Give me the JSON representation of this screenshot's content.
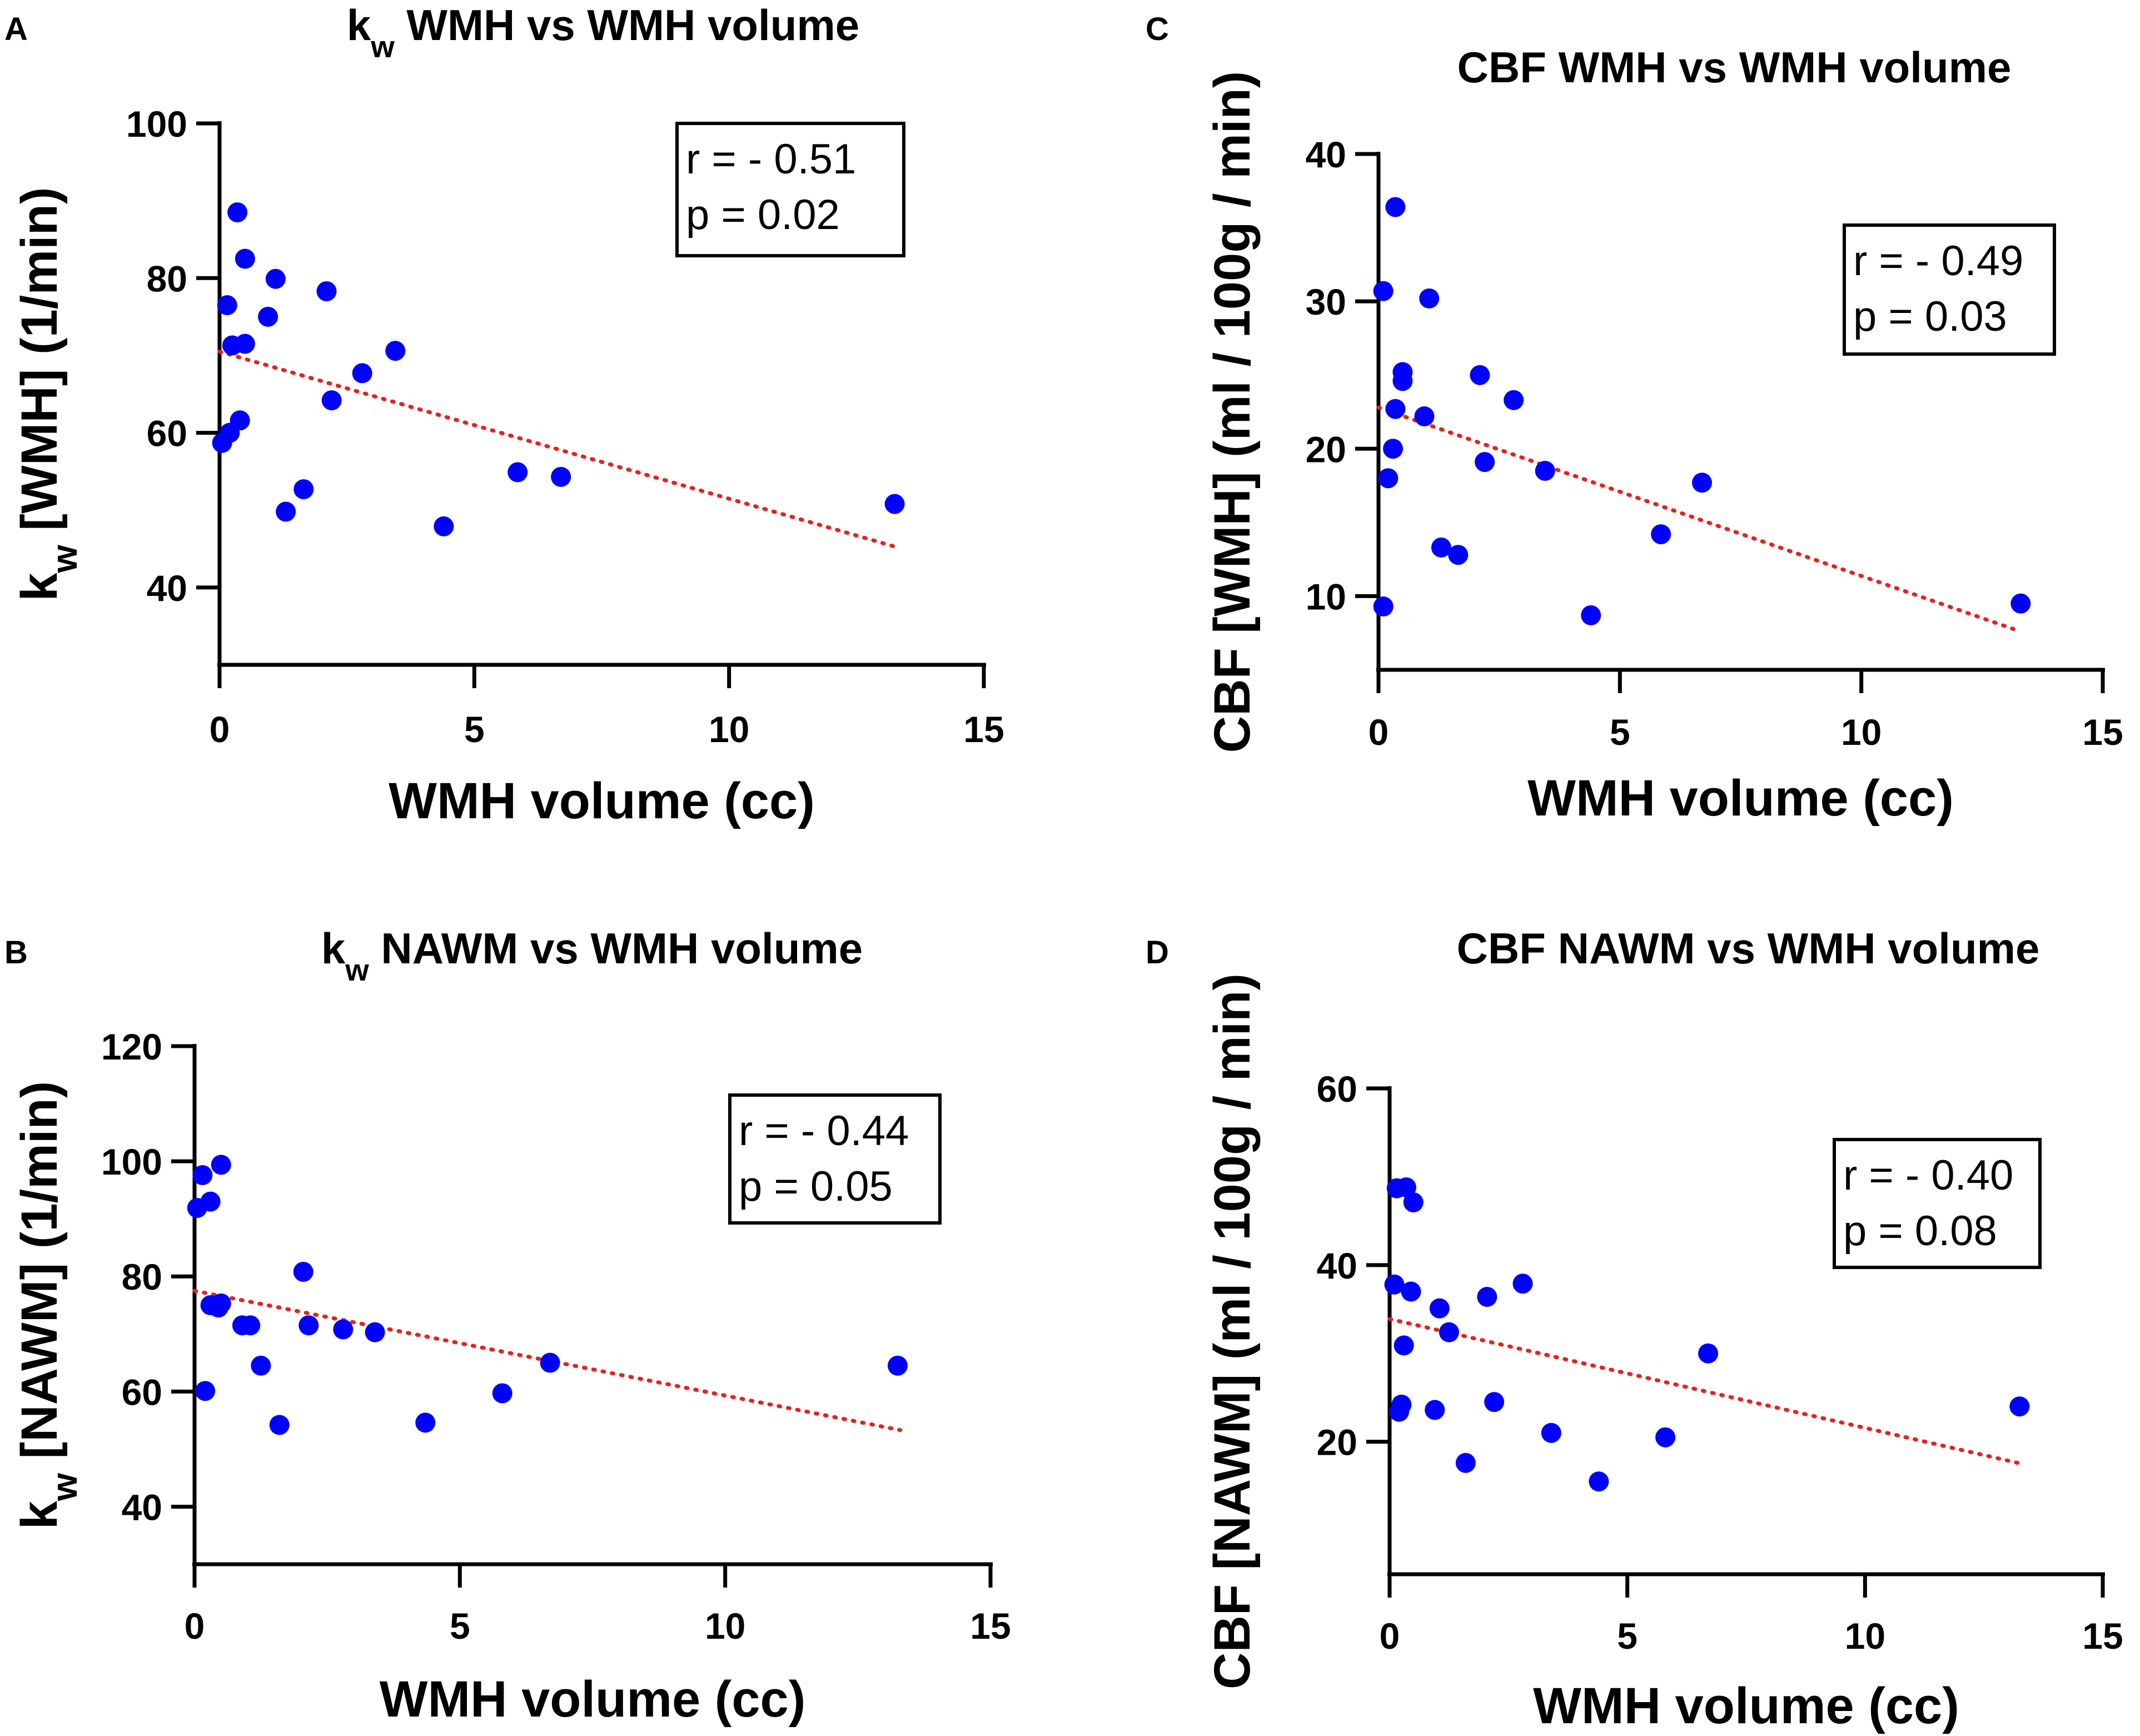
{
  "figure": {
    "colors": {
      "points": "#0000ff",
      "trendline": "#e8211d",
      "axes": "#000000",
      "background": "#ffffff"
    }
  },
  "chart_data": [
    {
      "panel": "A",
      "type": "scatter",
      "title_main": "k",
      "title_sub": "w",
      "title_rest": " WMH vs WMH volume",
      "xlabel": "WMH volume (cc)",
      "ylabel_main": "k",
      "ylabel_sub": "w",
      "ylabel_rest": " [WMH] (1/min)",
      "xlim": [
        0,
        15
      ],
      "ylim": [
        30,
        100
      ],
      "xticks": [
        0,
        5,
        10,
        15
      ],
      "yticks": [
        40,
        60,
        80,
        100
      ],
      "r_text": "r =  - 0.51",
      "p_text": "p =  0.02",
      "stats_position": "top-right",
      "trendline": {
        "x": [
          0,
          13.3
        ],
        "y": [
          70.5,
          45.2
        ],
        "style": "dotted"
      },
      "points": [
        {
          "x": 0.05,
          "y": 58.7
        },
        {
          "x": 0.15,
          "y": 76.5
        },
        {
          "x": 0.2,
          "y": 60.0
        },
        {
          "x": 0.25,
          "y": 71.3
        },
        {
          "x": 0.35,
          "y": 88.5
        },
        {
          "x": 0.4,
          "y": 61.6
        },
        {
          "x": 0.5,
          "y": 71.5
        },
        {
          "x": 0.5,
          "y": 82.5
        },
        {
          "x": 0.95,
          "y": 75.0
        },
        {
          "x": 1.1,
          "y": 79.9
        },
        {
          "x": 1.3,
          "y": 49.8
        },
        {
          "x": 1.65,
          "y": 52.7
        },
        {
          "x": 2.1,
          "y": 78.3
        },
        {
          "x": 2.2,
          "y": 64.2
        },
        {
          "x": 2.8,
          "y": 67.7
        },
        {
          "x": 3.45,
          "y": 70.6
        },
        {
          "x": 4.4,
          "y": 47.9
        },
        {
          "x": 5.85,
          "y": 54.9
        },
        {
          "x": 6.7,
          "y": 54.3
        },
        {
          "x": 13.25,
          "y": 50.8
        }
      ]
    },
    {
      "panel": "B",
      "type": "scatter",
      "title_main": "k",
      "title_sub": "w",
      "title_rest": " NAWM vs WMH volume",
      "xlabel": "WMH volume (cc)",
      "ylabel_main": "k",
      "ylabel_sub": "w",
      "ylabel_rest": " [NAWM] (1/min)",
      "xlim": [
        0,
        15
      ],
      "ylim": [
        30,
        120
      ],
      "xticks": [
        0,
        5,
        10,
        15
      ],
      "yticks": [
        40,
        60,
        80,
        100,
        120
      ],
      "r_text": "r =  - 0.44",
      "p_text": "p =  0.05",
      "stats_position": "right",
      "trendline": {
        "x": [
          0,
          13.3
        ],
        "y": [
          77.5,
          53.3
        ],
        "style": "dotted"
      },
      "points": [
        {
          "x": 0.05,
          "y": 91.9
        },
        {
          "x": 0.15,
          "y": 97.6
        },
        {
          "x": 0.2,
          "y": 60.1
        },
        {
          "x": 0.3,
          "y": 93.0
        },
        {
          "x": 0.3,
          "y": 75.0
        },
        {
          "x": 0.45,
          "y": 74.6
        },
        {
          "x": 0.5,
          "y": 75.3
        },
        {
          "x": 0.5,
          "y": 99.4
        },
        {
          "x": 0.9,
          "y": 71.5
        },
        {
          "x": 1.05,
          "y": 71.5
        },
        {
          "x": 1.25,
          "y": 64.5
        },
        {
          "x": 1.6,
          "y": 54.2
        },
        {
          "x": 2.05,
          "y": 80.8
        },
        {
          "x": 2.15,
          "y": 71.5
        },
        {
          "x": 2.8,
          "y": 70.8
        },
        {
          "x": 3.4,
          "y": 70.3
        },
        {
          "x": 4.35,
          "y": 54.6
        },
        {
          "x": 5.8,
          "y": 59.7
        },
        {
          "x": 6.7,
          "y": 65.0
        },
        {
          "x": 13.25,
          "y": 64.5
        }
      ]
    },
    {
      "panel": "C",
      "type": "scatter",
      "title_main": "CBF WMH vs WMH volume",
      "xlabel": "WMH volume (cc)",
      "ylabel": "CBF [WMH] (ml / 100g / min)",
      "xlim": [
        0,
        15
      ],
      "ylim": [
        5,
        40
      ],
      "xticks": [
        0,
        5,
        10,
        15
      ],
      "yticks": [
        10,
        20,
        30,
        40
      ],
      "r_text": "r =  - 0.49",
      "p_text": "p =  0.03",
      "stats_position": "top-right",
      "trendline": {
        "x": [
          0,
          13.3
        ],
        "y": [
          22.8,
          7.6
        ],
        "style": "dotted"
      },
      "points": [
        {
          "x": 0.1,
          "y": 30.7
        },
        {
          "x": 0.1,
          "y": 9.3
        },
        {
          "x": 0.2,
          "y": 18.0
        },
        {
          "x": 0.3,
          "y": 20.0
        },
        {
          "x": 0.35,
          "y": 22.7
        },
        {
          "x": 0.35,
          "y": 36.4
        },
        {
          "x": 0.5,
          "y": 25.2
        },
        {
          "x": 0.5,
          "y": 24.6
        },
        {
          "x": 0.95,
          "y": 22.2
        },
        {
          "x": 1.05,
          "y": 30.2
        },
        {
          "x": 1.3,
          "y": 13.3
        },
        {
          "x": 1.65,
          "y": 12.8
        },
        {
          "x": 2.1,
          "y": 25.0
        },
        {
          "x": 2.2,
          "y": 19.1
        },
        {
          "x": 2.8,
          "y": 23.3
        },
        {
          "x": 3.45,
          "y": 18.5
        },
        {
          "x": 4.4,
          "y": 8.7
        },
        {
          "x": 5.85,
          "y": 14.2
        },
        {
          "x": 6.7,
          "y": 17.7
        },
        {
          "x": 13.3,
          "y": 9.5
        }
      ]
    },
    {
      "panel": "D",
      "type": "scatter",
      "title_main": "CBF NAWM vs WMH volume",
      "xlabel": "WMH volume (cc)",
      "ylabel": "CBF [NAWM] (ml / 100g / min)",
      "xlim": [
        0,
        15
      ],
      "ylim": [
        5,
        60
      ],
      "xticks": [
        0,
        5,
        10,
        15
      ],
      "yticks": [
        20,
        40,
        60
      ],
      "r_text": "r =  - 0.40",
      "p_text": "p =  0.08",
      "stats_position": "right",
      "trendline": {
        "x": [
          0,
          13.3
        ],
        "y": [
          33.9,
          17.5
        ],
        "style": "dotted"
      },
      "points": [
        {
          "x": 0.1,
          "y": 37.8
        },
        {
          "x": 0.15,
          "y": 48.7
        },
        {
          "x": 0.2,
          "y": 23.4
        },
        {
          "x": 0.25,
          "y": 24.2
        },
        {
          "x": 0.3,
          "y": 30.9
        },
        {
          "x": 0.35,
          "y": 48.8
        },
        {
          "x": 0.45,
          "y": 37.0
        },
        {
          "x": 0.5,
          "y": 47.1
        },
        {
          "x": 0.95,
          "y": 23.6
        },
        {
          "x": 1.05,
          "y": 35.1
        },
        {
          "x": 1.25,
          "y": 32.4
        },
        {
          "x": 1.6,
          "y": 17.6
        },
        {
          "x": 2.05,
          "y": 36.4
        },
        {
          "x": 2.2,
          "y": 24.5
        },
        {
          "x": 2.8,
          "y": 37.9
        },
        {
          "x": 3.4,
          "y": 21.0
        },
        {
          "x": 4.4,
          "y": 15.5
        },
        {
          "x": 5.8,
          "y": 20.5
        },
        {
          "x": 6.7,
          "y": 30.0
        },
        {
          "x": 13.25,
          "y": 24.0
        }
      ]
    }
  ]
}
